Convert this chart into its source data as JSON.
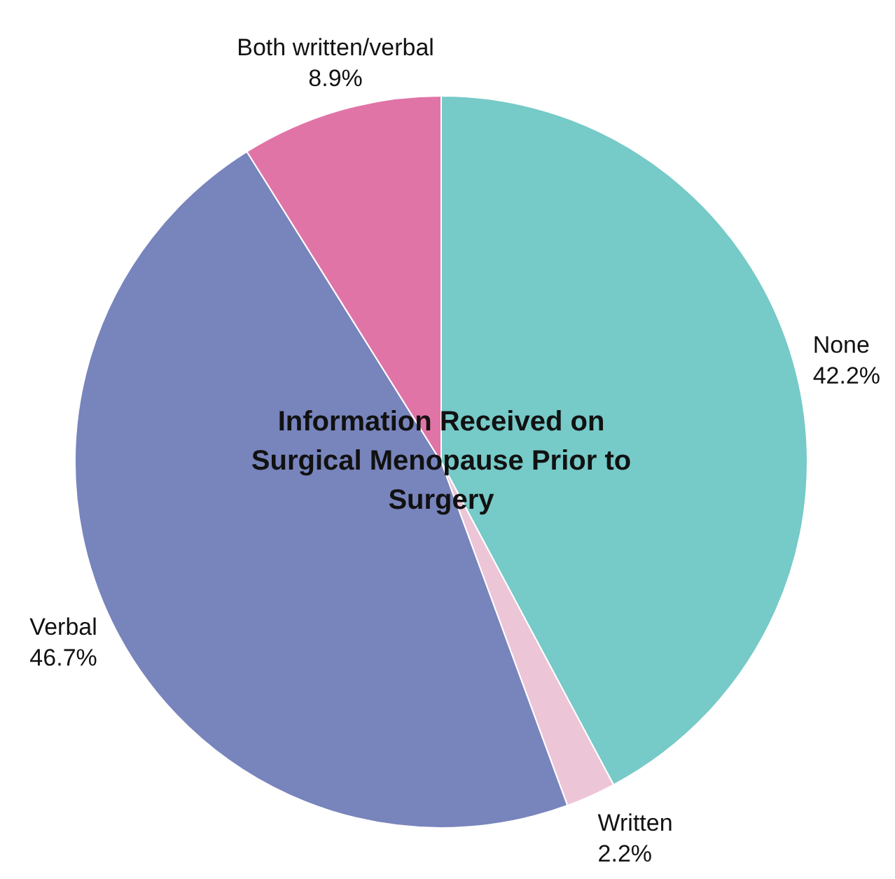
{
  "chart_data": {
    "type": "pie",
    "title": "Information Received on Surgical Menopause Prior to Surgery",
    "categories": [
      "None",
      "Written",
      "Verbal",
      "Both written/verbal"
    ],
    "values": [
      42.2,
      2.2,
      46.7,
      8.9
    ],
    "value_labels": [
      "42.2%",
      "2.2%",
      "46.7%",
      "8.9%"
    ],
    "colors": [
      "#76cac8",
      "#ecc5d6",
      "#7884bc",
      "#e174a6"
    ],
    "legend": false
  }
}
